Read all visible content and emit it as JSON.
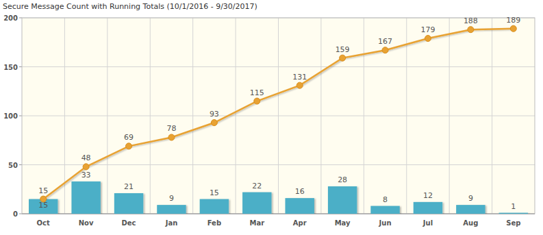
{
  "chart_data": {
    "type": "bar",
    "title": "Secure Message Count with Running Totals (10/1/2016 - 9/30/2017)",
    "categories": [
      "Oct",
      "Nov",
      "Dec",
      "Jan",
      "Feb",
      "Mar",
      "Apr",
      "May",
      "Jun",
      "Jul",
      "Aug",
      "Sep"
    ],
    "series": [
      {
        "type": "bar",
        "color": "#4bafc7",
        "values": [
          15,
          33,
          21,
          9,
          15,
          22,
          16,
          28,
          8,
          12,
          9,
          1
        ]
      },
      {
        "type": "line",
        "color": "#e8a233",
        "marker": "circle",
        "values": [
          15,
          48,
          69,
          78,
          93,
          115,
          131,
          159,
          167,
          179,
          188,
          189
        ]
      }
    ],
    "ylim": [
      0,
      200
    ],
    "yticks": [
      0,
      50,
      100,
      150,
      200
    ],
    "grid": true,
    "data_labels": true
  }
}
